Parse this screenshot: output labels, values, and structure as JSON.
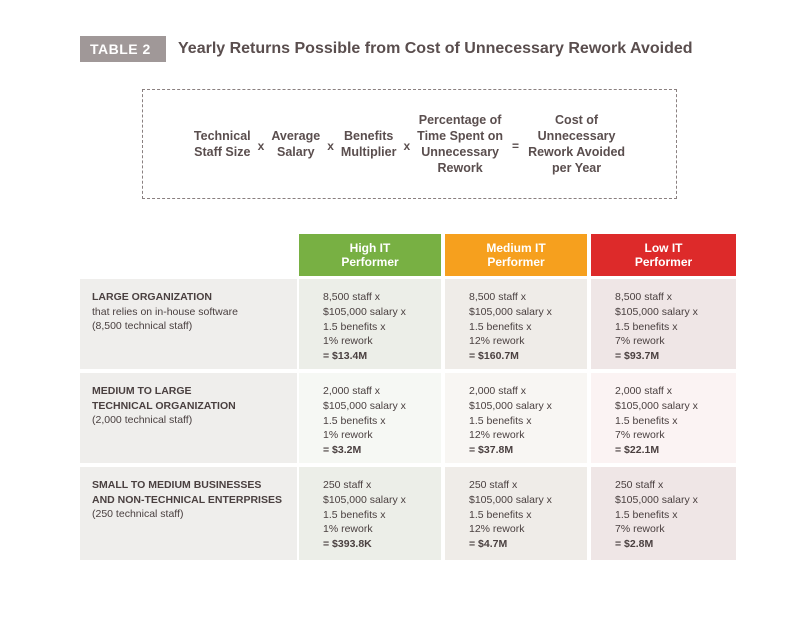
{
  "header": {
    "tag": "TABLE 2",
    "title": "Yearly Returns Possible from Cost of Unnecessary Rework Avoided"
  },
  "formula": {
    "terms": [
      "Technical\nStaff Size",
      "Average\nSalary",
      "Benefits\nMultiplier",
      "Percentage of\nTime Spent on\nUnnecessary\nRework",
      "Cost of\nUnnecessary\nRework Avoided\nper Year"
    ],
    "ops": [
      "x",
      "x",
      "x",
      "="
    ]
  },
  "columns": {
    "high": "High IT\nPerformer",
    "medium": "Medium IT\nPerformer",
    "low": "Low IT\nPerformer"
  },
  "rows": [
    {
      "label_bold": "LARGE ORGANIZATION",
      "label_rest": [
        "that relies on in-house software",
        "(8,500 technical staff)"
      ],
      "cells": [
        {
          "staff": "8,500 staff x",
          "salary": "$105,000 salary x",
          "benefits": "1.5 benefits x",
          "rework": "1% rework",
          "result": "= $13.4M"
        },
        {
          "staff": "8,500 staff x",
          "salary": "$105,000 salary x",
          "benefits": "1.5 benefits x",
          "rework": "12% rework",
          "result": "= $160.7M"
        },
        {
          "staff": "8,500 staff x",
          "salary": "$105,000 salary x",
          "benefits": "1.5 benefits x",
          "rework": "7% rework",
          "result": "= $93.7M"
        }
      ]
    },
    {
      "label_bold": "MEDIUM TO LARGE\nTECHNICAL ORGANIZATION",
      "label_rest": [
        "(2,000 technical staff)"
      ],
      "cells": [
        {
          "staff": "2,000 staff x",
          "salary": "$105,000 salary x",
          "benefits": "1.5 benefits x",
          "rework": "1% rework",
          "result": "= $3.2M"
        },
        {
          "staff": "2,000 staff x",
          "salary": "$105,000 salary x",
          "benefits": "1.5 benefits x",
          "rework": "12% rework",
          "result": "= $37.8M"
        },
        {
          "staff": "2,000 staff x",
          "salary": "$105,000 salary x",
          "benefits": "1.5 benefits x",
          "rework": "7% rework",
          "result": "= $22.1M"
        }
      ]
    },
    {
      "label_bold": "SMALL TO MEDIUM BUSINESSES\nAND NON-TECHNICAL ENTERPRISES",
      "label_rest": [
        "(250 technical staff)"
      ],
      "cells": [
        {
          "staff": "250 staff x",
          "salary": "$105,000 salary x",
          "benefits": "1.5 benefits x",
          "rework": "1% rework",
          "result": "= $393.8K"
        },
        {
          "staff": "250 staff x",
          "salary": "$105,000 salary x",
          "benefits": "1.5 benefits x",
          "rework": "12% rework",
          "result": "= $4.7M"
        },
        {
          "staff": "250 staff x",
          "salary": "$105,000 salary x",
          "benefits": "1.5 benefits x",
          "rework": "7% rework",
          "result": "= $2.8M"
        }
      ]
    }
  ]
}
